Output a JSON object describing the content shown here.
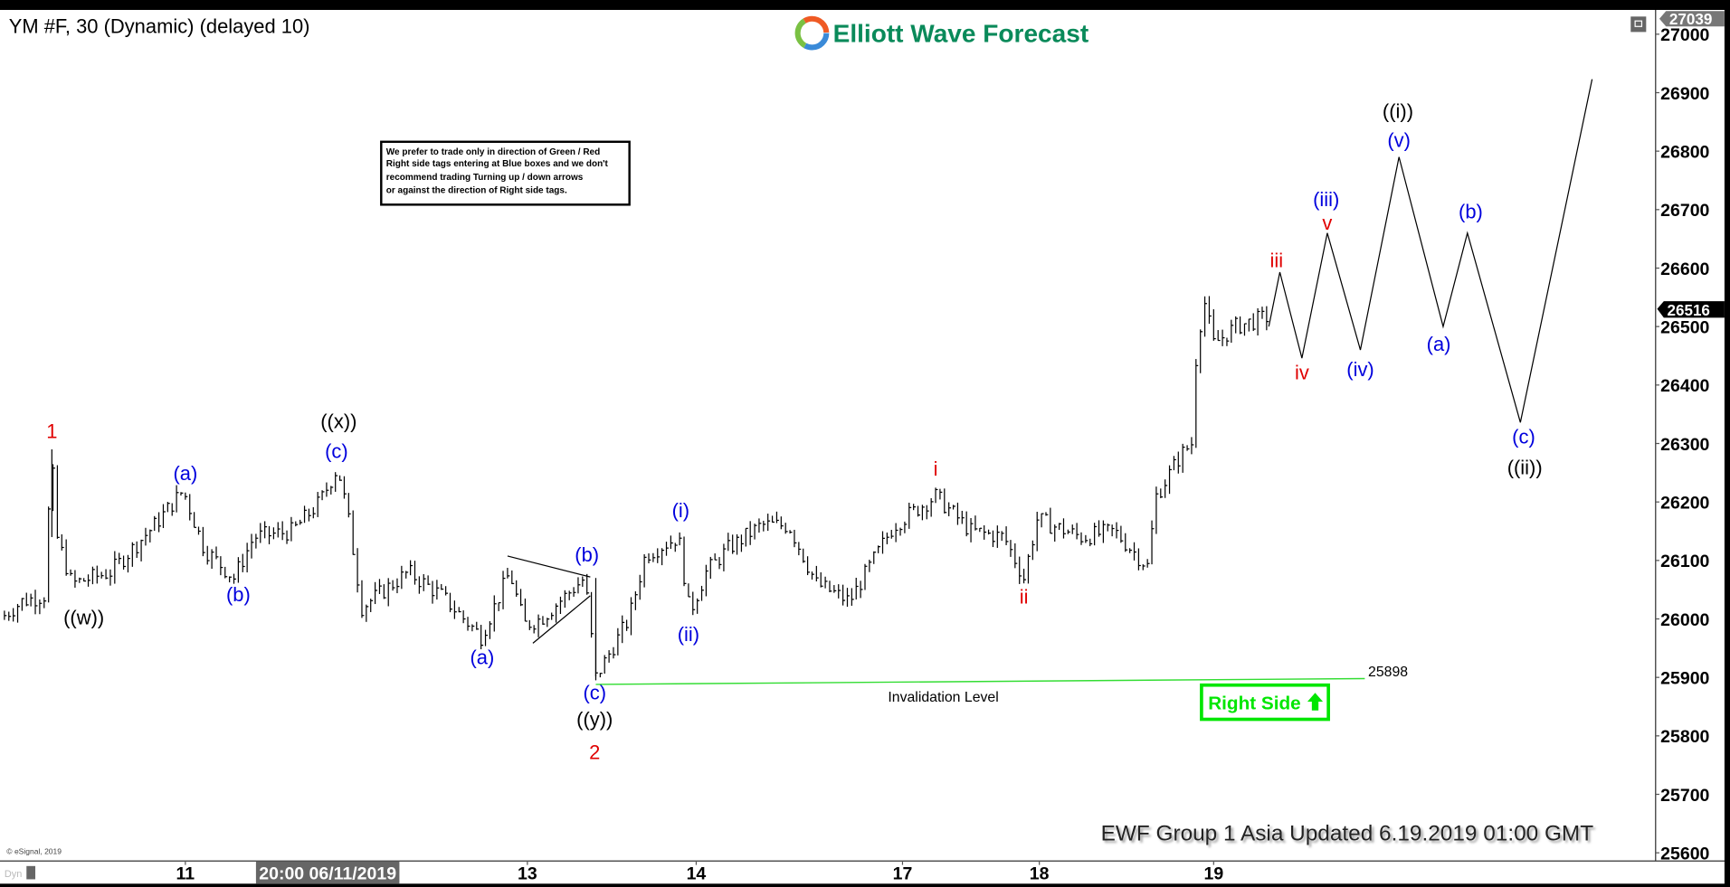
{
  "header": {
    "symbol_title": "YM #F, 30 (Dynamic) (delayed 10)",
    "logo_text": "Elliott Wave Forecast",
    "footer_update": "EWF Group 1 Asia Updated 6.19.2019 01:00 GMT",
    "copyright": "© eSignal, 2019",
    "dyn_label": "Dyn"
  },
  "note_box": {
    "lines": [
      "We prefer to trade only in direction of Green / Red",
      "Right side tags entering at Blue boxes and we don't",
      "recommend trading Turning up / down arrows",
      "or against the direction of Right side tags."
    ]
  },
  "right_side_tag": {
    "label": "Right Side",
    "icon": "arrow-up-icon",
    "color": "#00e600"
  },
  "colors": {
    "red": "#e00000",
    "blue": "#0000dd",
    "black": "#000000",
    "green_line": "#33dd33",
    "brand": "#0a8a5a"
  },
  "chart_data": {
    "type": "bar",
    "instrument": "YM #F",
    "interval": "30",
    "y_ticks": [
      "27000",
      "26900",
      "26800",
      "26700",
      "26600",
      "26500",
      "26400",
      "26300",
      "26200",
      "26100",
      "26000",
      "25900",
      "25800",
      "25700",
      "25600"
    ],
    "ylim": [
      25600,
      27000
    ],
    "x_ticks": [
      "11",
      "20:00 06/11/2019",
      "13",
      "14",
      "17",
      "18",
      "19"
    ],
    "high_tag": "27039",
    "last_price_tag": "26516",
    "price_path": [
      26000,
      26030,
      26040,
      26290,
      26150,
      26060,
      26080,
      26160,
      26220,
      26120,
      26070,
      26140,
      26150,
      26200,
      26260,
      26180,
      26020,
      26080,
      26040,
      25970,
      26080,
      25990,
      26000,
      26070,
      25900,
      25950,
      26000,
      26110,
      26140,
      26010,
      26080,
      26120,
      26160,
      26160,
      26060,
      26030,
      26160,
      26210,
      26150,
      26140,
      26070,
      26170,
      26140,
      26150,
      26090,
      26210,
      26280,
      26300,
      26480,
      26540,
      26470,
      26500,
      26516
    ],
    "projection": [
      26500,
      26593,
      26446,
      26660,
      26460,
      26790,
      26500,
      26660,
      26336,
      26923
    ],
    "invalidation": {
      "value": "25898",
      "label": "Invalidation Level"
    },
    "wave_labels": [
      {
        "text": "1",
        "color": "red"
      },
      {
        "text": "((w))",
        "color": "black"
      },
      {
        "text": "(a)",
        "color": "blue"
      },
      {
        "text": "(b)",
        "color": "blue"
      },
      {
        "text": "((x))",
        "color": "black"
      },
      {
        "text": "(c)",
        "color": "blue"
      },
      {
        "text": "(a)",
        "color": "blue"
      },
      {
        "text": "(b)",
        "color": "blue"
      },
      {
        "text": "(c)",
        "color": "blue"
      },
      {
        "text": "((y))",
        "color": "black"
      },
      {
        "text": "2",
        "color": "red"
      },
      {
        "text": "(i)",
        "color": "blue"
      },
      {
        "text": "(ii)",
        "color": "blue"
      },
      {
        "text": "i",
        "color": "red"
      },
      {
        "text": "ii",
        "color": "red"
      },
      {
        "text": "iii",
        "color": "red"
      },
      {
        "text": "iv",
        "color": "red"
      },
      {
        "text": "(iii)",
        "color": "blue"
      },
      {
        "text": "v",
        "color": "red"
      },
      {
        "text": "(iv)",
        "color": "blue"
      },
      {
        "text": "((i))",
        "color": "black"
      },
      {
        "text": "(v)",
        "color": "blue"
      },
      {
        "text": "(a)",
        "color": "blue"
      },
      {
        "text": "(b)",
        "color": "blue"
      },
      {
        "text": "(c)",
        "color": "blue"
      },
      {
        "text": "((ii))",
        "color": "black"
      }
    ]
  }
}
